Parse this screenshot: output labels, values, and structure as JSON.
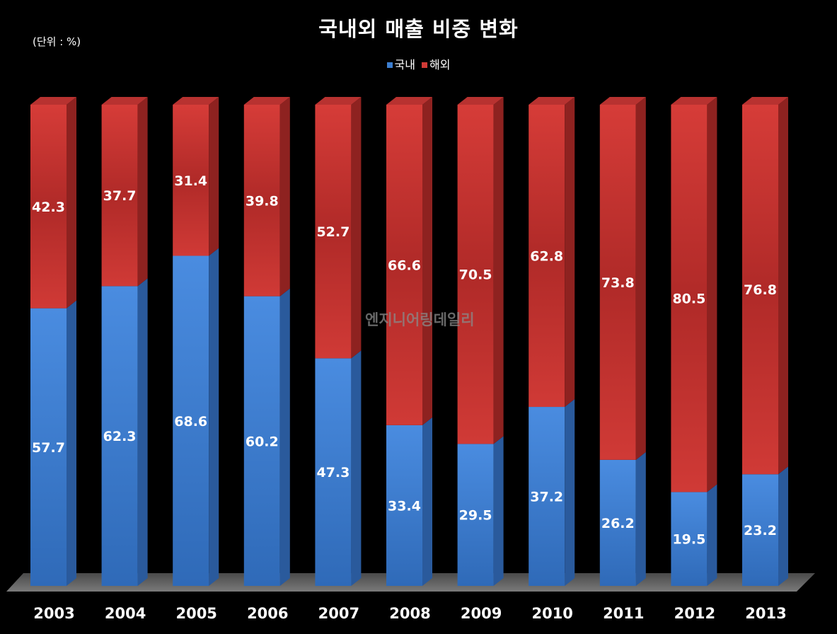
{
  "chart_data": {
    "type": "bar",
    "stacked": true,
    "title": "국내외 매출 비중 변화",
    "unit_label": "(단위 : %)",
    "categories": [
      "2003",
      "2004",
      "2005",
      "2006",
      "2007",
      "2008",
      "2009",
      "2010",
      "2011",
      "2012",
      "2013"
    ],
    "series": [
      {
        "name": "국내",
        "color": "#3c7ed0",
        "values": [
          57.7,
          62.3,
          68.6,
          60.2,
          47.3,
          33.4,
          29.5,
          37.2,
          26.2,
          19.5,
          23.2
        ]
      },
      {
        "name": "해외",
        "color": "#d03a36",
        "values": [
          42.3,
          37.7,
          31.4,
          39.8,
          52.7,
          66.6,
          70.5,
          62.8,
          73.8,
          80.5,
          76.8
        ]
      }
    ],
    "ylim": [
      0,
      100
    ],
    "grid": false,
    "legend_position": "top-center"
  },
  "watermark": "엔지니어링데일리"
}
